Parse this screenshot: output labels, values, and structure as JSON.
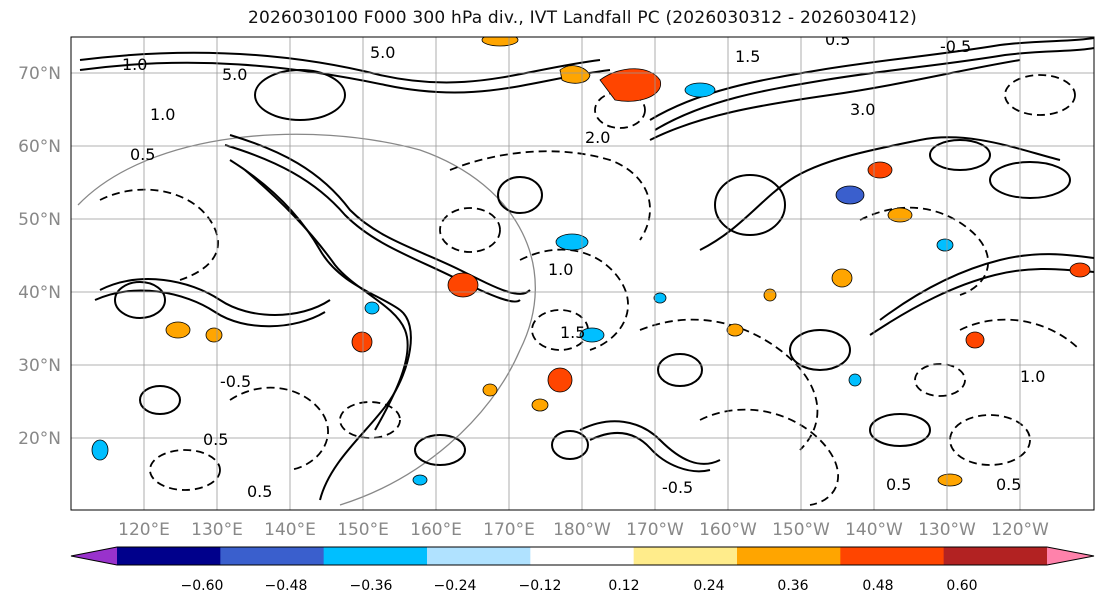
{
  "title": "2026030100 F000 300 hPa div., IVT Landfall PC (2026030312 - 2026030412)",
  "lat_labels": [
    "70°N",
    "60°N",
    "50°N",
    "40°N",
    "30°N",
    "20°N"
  ],
  "lon_labels": [
    "120°E",
    "130°E",
    "140°E",
    "150°E",
    "160°E",
    "170°E",
    "180°W",
    "170°W",
    "160°W",
    "150°W",
    "140°W",
    "130°W",
    "120°W"
  ],
  "contour_labels": [
    "5.0",
    "1.0",
    "5.0",
    "1.0",
    "0.5",
    "2.0",
    "1.5",
    "0.5",
    "3.0",
    "1.0",
    "-0.5",
    "0.5",
    "1.5",
    "0.5",
    "-0.5",
    "0.5",
    "0.5",
    "-0.5",
    "1.0"
  ],
  "colorbar": {
    "tick_labels": [
      "−0.60",
      "−0.48",
      "−0.36",
      "−0.24",
      "−0.12",
      "0.12",
      "0.24",
      "0.36",
      "0.48",
      "0.60"
    ],
    "colors": [
      "#9932cc",
      "#00008b",
      "#3a5fcd",
      "#00bfff",
      "#b0e2ff",
      "#ffffff",
      "#ffec8b",
      "#ffa500",
      "#ff4500",
      "#b22222",
      "#ff82ab"
    ]
  },
  "colors": {
    "grid": "#999999",
    "axis_text": "#888888",
    "contour": "#000000"
  }
}
